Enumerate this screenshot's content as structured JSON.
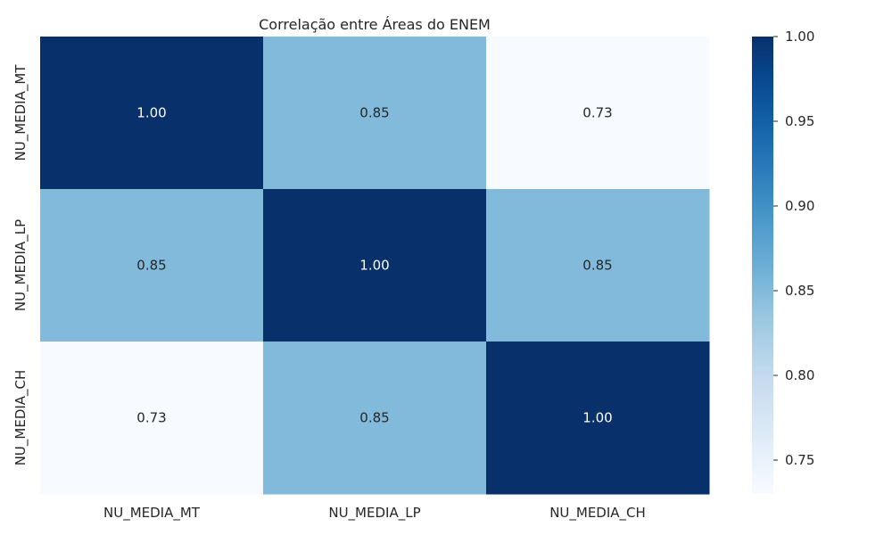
{
  "chart_data": {
    "type": "heatmap",
    "title": "Correlação entre Áreas do ENEM",
    "x_labels": [
      "NU_MEDIA_MT",
      "NU_MEDIA_LP",
      "NU_MEDIA_CH"
    ],
    "y_labels": [
      "NU_MEDIA_MT",
      "NU_MEDIA_LP",
      "NU_MEDIA_CH"
    ],
    "values": [
      [
        1.0,
        0.85,
        0.73
      ],
      [
        0.85,
        1.0,
        0.85
      ],
      [
        0.73,
        0.85,
        1.0
      ]
    ],
    "value_format": "0.00",
    "colormap": "Blues",
    "colorbar": {
      "min": 0.73,
      "max": 1.0,
      "ticks": [
        0.75,
        0.8,
        0.85,
        0.9,
        0.95,
        1.0
      ],
      "tick_labels": [
        "0.75",
        "0.80",
        "0.85",
        "0.90",
        "0.95",
        "1.00"
      ]
    },
    "xlabel": "",
    "ylabel": "",
    "colors": {
      "high": "#08306b",
      "low": "#f7fbff",
      "text_dark": "#262626",
      "text_light": "#ffffff"
    }
  }
}
